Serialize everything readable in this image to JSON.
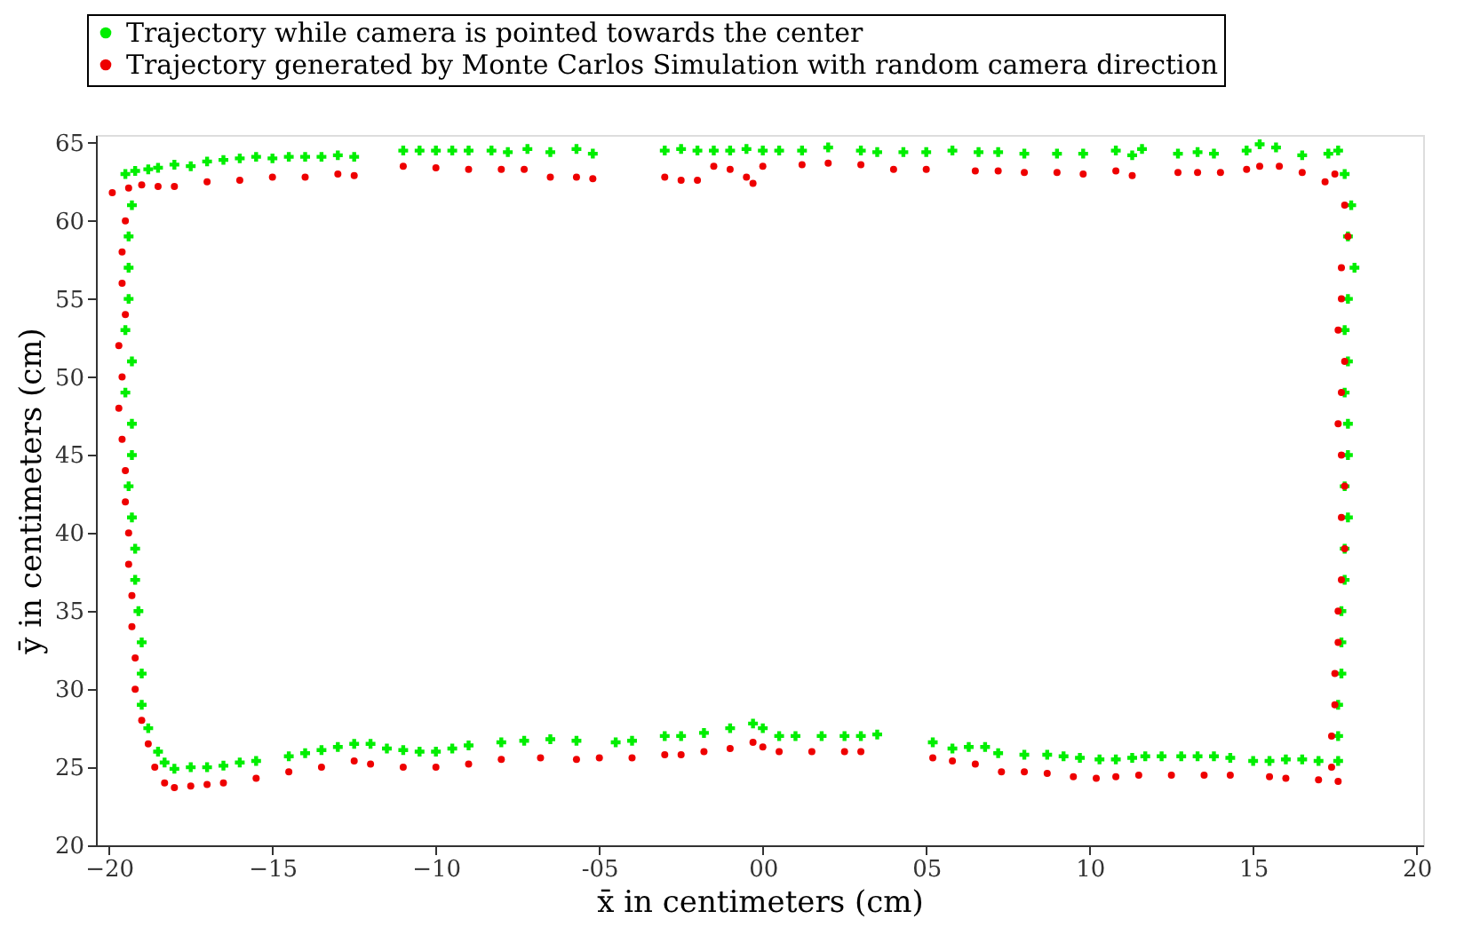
{
  "chart_data": {
    "type": "scatter",
    "xlabel": "x̄ in centimeters (cm)",
    "ylabel": "ȳ in centimeters (cm)",
    "xlim": [
      -20.4,
      20.2
    ],
    "ylim": [
      20,
      65.5
    ],
    "xticks": [
      -20,
      -15,
      -10,
      {
        "value": -5,
        "label": "-05"
      },
      {
        "value": 0,
        "label": "00"
      },
      {
        "value": 5,
        "label": "05"
      },
      10,
      15,
      20
    ],
    "yticks": [
      20,
      25,
      30,
      35,
      40,
      45,
      50,
      55,
      60,
      65
    ],
    "grid": false,
    "legend": "top left",
    "series": [
      {
        "name": "Trajectory while camera is pointed towards the center",
        "color": "#00ee00",
        "marker": "cross",
        "x": [
          -19.5,
          -19.2,
          -18.8,
          -18.5,
          -18,
          -17.5,
          -17,
          -16.5,
          -16,
          -15.5,
          -15,
          -14.5,
          -14,
          -13.5,
          -13,
          -12.5,
          -11,
          -10.5,
          -10,
          -9.5,
          -9,
          -8.3,
          -7.8,
          -7.2,
          -6.5,
          -5.7,
          -5.2,
          -3,
          -2.5,
          -2,
          -1.5,
          -1,
          -0.5,
          0,
          0.5,
          1.2,
          2,
          3,
          3.5,
          4.3,
          5,
          5.8,
          6.6,
          7.2,
          8,
          9,
          9.8,
          10.8,
          11.3,
          11.6,
          12.7,
          13.3,
          13.8,
          14.8,
          15.2,
          15.7,
          16.5,
          17.3,
          17.6,
          17.8,
          18.0,
          17.9,
          18.1,
          17.9,
          17.8,
          17.9,
          17.8,
          17.9,
          17.9,
          17.8,
          17.9,
          17.8,
          17.8,
          17.7,
          17.7,
          17.7,
          17.6,
          17.6,
          17.6,
          17,
          16.5,
          16,
          15.5,
          15,
          14.3,
          13.8,
          13.3,
          12.8,
          12.2,
          11.7,
          11.3,
          10.8,
          10.3,
          9.7,
          9.2,
          8.7,
          8,
          7.2,
          6.8,
          6.3,
          5.8,
          5.2,
          3.5,
          3,
          2.5,
          1.8,
          1,
          0.5,
          0,
          -0.3,
          -1,
          -1.8,
          -2.5,
          -3,
          -4,
          -4.5,
          -5.7,
          -6.5,
          -7.3,
          -8,
          -9,
          -9.5,
          -10,
          -10.5,
          -11,
          -11.5,
          -12,
          -12.5,
          -13,
          -13.5,
          -14,
          -14.5,
          -15.5,
          -16,
          -16.5,
          -17,
          -17.5,
          -18,
          -18.3,
          -18.5,
          -18.8,
          -19,
          -19,
          -19,
          -19.1,
          -19.2,
          -19.2,
          -19.3,
          -19.4,
          -19.3,
          -19.3,
          -19.5,
          -19.3,
          -19.5,
          -19.4,
          -19.4,
          -19.4,
          -19.3
        ],
        "values": [
          63,
          63.2,
          63.3,
          63.4,
          63.6,
          63.5,
          63.8,
          63.9,
          64,
          64.1,
          64,
          64.1,
          64.1,
          64.1,
          64.2,
          64.1,
          64.5,
          64.5,
          64.5,
          64.5,
          64.5,
          64.5,
          64.4,
          64.6,
          64.4,
          64.6,
          64.3,
          64.5,
          64.6,
          64.5,
          64.5,
          64.5,
          64.6,
          64.5,
          64.5,
          64.5,
          64.7,
          64.5,
          64.4,
          64.4,
          64.4,
          64.5,
          64.4,
          64.4,
          64.3,
          64.3,
          64.3,
          64.5,
          64.2,
          64.6,
          64.3,
          64.4,
          64.3,
          64.5,
          64.9,
          64.7,
          64.2,
          64.3,
          64.5,
          63,
          61,
          59,
          57,
          55,
          53,
          51,
          49,
          47,
          45,
          43,
          41,
          39,
          37,
          35,
          33,
          31,
          29,
          27,
          25.4,
          25.4,
          25.5,
          25.5,
          25.4,
          25.4,
          25.6,
          25.7,
          25.7,
          25.7,
          25.7,
          25.7,
          25.6,
          25.5,
          25.5,
          25.6,
          25.7,
          25.8,
          25.8,
          25.9,
          26.3,
          26.3,
          26.2,
          26.6,
          27.1,
          27,
          27,
          27,
          27,
          27,
          27.5,
          27.8,
          27.5,
          27.2,
          27,
          27,
          26.7,
          26.6,
          26.7,
          26.8,
          26.7,
          26.6,
          26.4,
          26.2,
          26,
          26,
          26.1,
          26.2,
          26.5,
          26.5,
          26.3,
          26.1,
          25.9,
          25.7,
          25.4,
          25.3,
          25.1,
          25,
          25,
          24.9,
          25.3,
          26,
          27.5,
          29,
          31,
          33,
          35,
          37,
          39,
          41,
          43,
          45,
          47,
          49,
          51,
          53,
          55,
          57,
          59,
          61
        ]
      },
      {
        "name": "Trajectory generated by Monte Carlos Simulation with random camera direction",
        "color": "#ee0000",
        "marker": "circle",
        "x": [
          -19.9,
          -19.4,
          -19,
          -18.5,
          -18,
          -17,
          -16,
          -15,
          -14,
          -13,
          -12.5,
          -11,
          -10,
          -9,
          -8,
          -7.3,
          -6.5,
          -5.7,
          -5.2,
          -3,
          -2.5,
          -2,
          -1.5,
          -1,
          -0.5,
          -0.3,
          0,
          1.2,
          2,
          3,
          4,
          5,
          6.5,
          7.2,
          8,
          9,
          9.8,
          10.8,
          11.3,
          12.7,
          13.3,
          14,
          14.8,
          15.2,
          15.8,
          16.5,
          17.2,
          17.5,
          17.8,
          17.9,
          17.7,
          17.7,
          17.6,
          17.8,
          17.7,
          17.6,
          17.7,
          17.8,
          17.7,
          17.8,
          17.7,
          17.6,
          17.6,
          17.5,
          17.5,
          17.4,
          17.4,
          17.6,
          17,
          16,
          15.5,
          14.3,
          13.5,
          12.5,
          11.5,
          10.8,
          10.2,
          9.5,
          8.7,
          8,
          7.3,
          6.5,
          5.8,
          5.2,
          3,
          2.5,
          1.5,
          0.5,
          0,
          -0.3,
          -1,
          -1.8,
          -2.5,
          -3,
          -4,
          -5,
          -5.7,
          -6.8,
          -8,
          -9,
          -10,
          -11,
          -12,
          -12.5,
          -13.5,
          -14.5,
          -15.5,
          -16.5,
          -17,
          -17.5,
          -18,
          -18.3,
          -18.6,
          -18.8,
          -19,
          -19.2,
          -19.2,
          -19.3,
          -19.3,
          -19.4,
          -19.4,
          -19.5,
          -19.5,
          -19.6,
          -19.7,
          -19.6,
          -19.7,
          -19.5,
          -19.6,
          -19.6,
          -19.5
        ],
        "values": [
          61.8,
          62.1,
          62.3,
          62.2,
          62.2,
          62.5,
          62.6,
          62.8,
          62.8,
          63,
          62.9,
          63.5,
          63.4,
          63.3,
          63.3,
          63.3,
          62.8,
          62.8,
          62.7,
          62.8,
          62.6,
          62.6,
          63.5,
          63.3,
          62.8,
          62.4,
          63.5,
          63.6,
          63.7,
          63.6,
          63.3,
          63.3,
          63.2,
          63.2,
          63.1,
          63.1,
          63,
          63.2,
          62.9,
          63.1,
          63.1,
          63.1,
          63.3,
          63.5,
          63.5,
          63.1,
          62.5,
          63,
          61,
          59,
          57,
          55,
          53,
          51,
          49,
          47,
          45,
          43,
          41,
          39,
          37,
          35,
          33,
          31,
          29,
          27,
          25,
          24.1,
          24.2,
          24.3,
          24.4,
          24.5,
          24.5,
          24.5,
          24.5,
          24.4,
          24.3,
          24.4,
          24.6,
          24.7,
          24.7,
          25.2,
          25.4,
          25.6,
          26,
          26,
          26,
          26,
          26.3,
          26.6,
          26.2,
          26,
          25.8,
          25.8,
          25.6,
          25.6,
          25.5,
          25.6,
          25.5,
          25.2,
          25,
          25,
          25.2,
          25.4,
          25,
          24.7,
          24.3,
          24,
          23.9,
          23.8,
          23.7,
          24,
          25,
          26.5,
          28,
          30,
          32,
          34,
          36,
          38,
          40,
          42,
          44,
          46,
          48,
          50,
          52,
          54,
          56,
          58,
          60
        ]
      }
    ]
  }
}
